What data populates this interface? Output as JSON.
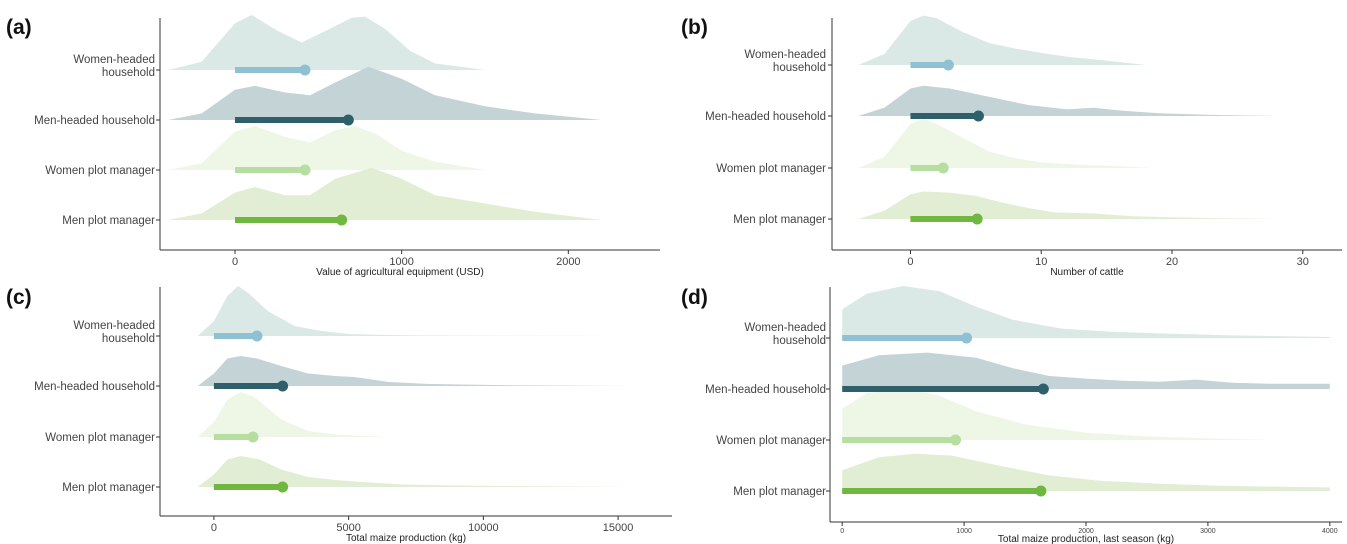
{
  "figure": {
    "categories": [
      "Women-headed household",
      "Men-headed household",
      "Women plot manager",
      "Men plot manager"
    ],
    "category_label_lines": [
      [
        "Women-headed",
        "household"
      ],
      [
        "Men-headed household"
      ],
      [
        "Women plot manager"
      ],
      [
        "Men plot manager"
      ]
    ],
    "colors": {
      "Women-headed household": "#8fc1d3",
      "Men-headed household": "#2e5f6b",
      "Women plot manager": "#b5dea0",
      "Men plot manager": "#6fb73f"
    },
    "fills": {
      "Women-headed household": "#dbe9e6",
      "Men-headed household": "#c4d3d6",
      "Women plot manager": "#eef6e6",
      "Men plot manager": "#e1eed3"
    }
  },
  "chart_data": [
    {
      "type": "ridgeline",
      "panel": "(a)",
      "xlabel": "Value of agricultural equipment (USD)",
      "xlim": [
        -450,
        2550
      ],
      "xticks": [
        0,
        1000,
        2000
      ],
      "small_ticks": false,
      "series": [
        {
          "category": "Women-headed household",
          "mean": 420,
          "density_x": [
            -400,
            -200,
            0,
            100,
            250,
            400,
            550,
            700,
            780,
            900,
            1050,
            1200,
            1500
          ],
          "density_y": [
            0,
            0.15,
            0.85,
            1,
            0.72,
            0.5,
            0.72,
            0.95,
            0.97,
            0.75,
            0.35,
            0.12,
            0
          ]
        },
        {
          "category": "Men-headed household",
          "mean": 680,
          "density_x": [
            -400,
            -200,
            0,
            120,
            300,
            450,
            600,
            800,
            1000,
            1200,
            1500,
            1800,
            2200
          ],
          "density_y": [
            0,
            0.12,
            0.55,
            0.62,
            0.5,
            0.45,
            0.68,
            0.97,
            0.75,
            0.45,
            0.25,
            0.12,
            0
          ]
        },
        {
          "category": "Women plot manager",
          "mean": 420,
          "density_x": [
            -400,
            -200,
            0,
            120,
            300,
            450,
            600,
            720,
            850,
            1000,
            1200,
            1500
          ],
          "density_y": [
            0,
            0.12,
            0.7,
            0.8,
            0.6,
            0.5,
            0.72,
            0.8,
            0.65,
            0.35,
            0.15,
            0
          ]
        },
        {
          "category": "Men plot manager",
          "mean": 640,
          "density_x": [
            -400,
            -200,
            0,
            120,
            300,
            450,
            600,
            820,
            1000,
            1200,
            1500,
            1800,
            2200
          ],
          "density_y": [
            0,
            0.12,
            0.5,
            0.6,
            0.45,
            0.45,
            0.75,
            0.95,
            0.75,
            0.45,
            0.3,
            0.15,
            0
          ]
        }
      ]
    },
    {
      "type": "ridgeline",
      "panel": "(b)",
      "xlabel": "Number of cattle",
      "xlim": [
        -6,
        33
      ],
      "xticks": [
        0,
        10,
        20,
        30
      ],
      "small_ticks": false,
      "series": [
        {
          "category": "Women-headed household",
          "mean": 2.9,
          "density_x": [
            -4,
            -2,
            0,
            1,
            2,
            4,
            6,
            8,
            10,
            12,
            15,
            18
          ],
          "density_y": [
            0,
            0.2,
            0.8,
            0.9,
            0.85,
            0.6,
            0.4,
            0.3,
            0.22,
            0.15,
            0.08,
            0
          ]
        },
        {
          "category": "Men-headed household",
          "mean": 5.2,
          "density_x": [
            -4,
            -2,
            0,
            1,
            3,
            5,
            7,
            9,
            12,
            14,
            16,
            19,
            23,
            28
          ],
          "density_y": [
            0,
            0.15,
            0.5,
            0.55,
            0.5,
            0.4,
            0.3,
            0.2,
            0.12,
            0.15,
            0.1,
            0.05,
            0.02,
            0
          ]
        },
        {
          "category": "Women plot manager",
          "mean": 2.5,
          "density_x": [
            -4,
            -2,
            0,
            1,
            2,
            4,
            6,
            8,
            10,
            13,
            16,
            18.5
          ],
          "density_y": [
            0,
            0.2,
            0.8,
            0.9,
            0.8,
            0.55,
            0.3,
            0.18,
            0.1,
            0.06,
            0.03,
            0
          ]
        },
        {
          "category": "Men plot manager",
          "mean": 5.1,
          "density_x": [
            -4,
            -2,
            0,
            1,
            3,
            5,
            7,
            9,
            11,
            14,
            17,
            20,
            24,
            28
          ],
          "density_y": [
            0,
            0.15,
            0.45,
            0.5,
            0.48,
            0.42,
            0.3,
            0.2,
            0.12,
            0.1,
            0.05,
            0.03,
            0.01,
            0
          ]
        }
      ]
    },
    {
      "type": "ridgeline",
      "panel": "(c)",
      "xlabel": "Total maize production (kg)",
      "xlim": [
        -2000,
        17000
      ],
      "xticks": [
        0,
        5000,
        10000,
        15000
      ],
      "small_ticks": false,
      "series": [
        {
          "category": "Women-headed household",
          "mean": 1600,
          "density_x": [
            -600,
            0,
            500,
            900,
            1300,
            2000,
            3000,
            4000,
            5000,
            6500,
            8000,
            11000,
            15500
          ],
          "density_y": [
            0,
            0.3,
            0.8,
            1,
            0.85,
            0.5,
            0.2,
            0.1,
            0.04,
            0.02,
            0.01,
            0.005,
            0
          ]
        },
        {
          "category": "Men-headed household",
          "mean": 2550,
          "density_x": [
            -600,
            0,
            500,
            1000,
            1600,
            2500,
            3500,
            4500,
            5200,
            6500,
            8000,
            11000,
            15500
          ],
          "density_y": [
            0,
            0.25,
            0.55,
            0.6,
            0.55,
            0.4,
            0.25,
            0.2,
            0.18,
            0.08,
            0.04,
            0.015,
            0
          ]
        },
        {
          "category": "Women plot manager",
          "mean": 1450,
          "density_x": [
            -600,
            0,
            500,
            1000,
            1500,
            2500,
            3500,
            4500,
            5500,
            6500
          ],
          "density_y": [
            0,
            0.3,
            0.75,
            0.9,
            0.8,
            0.35,
            0.12,
            0.05,
            0.02,
            0
          ]
        },
        {
          "category": "Men plot manager",
          "mean": 2550,
          "density_x": [
            -600,
            0,
            500,
            1000,
            1700,
            2500,
            3500,
            4500,
            5500,
            7000,
            9000,
            12000,
            15500
          ],
          "density_y": [
            0,
            0.25,
            0.55,
            0.62,
            0.55,
            0.35,
            0.2,
            0.14,
            0.1,
            0.05,
            0.03,
            0.015,
            0
          ]
        }
      ]
    },
    {
      "type": "ridgeline",
      "panel": "(d)",
      "xlabel": "Total maize production, last season (kg)",
      "xlim": [
        -100,
        4100
      ],
      "xticks": [
        0,
        1000,
        2000,
        3000,
        4000
      ],
      "small_ticks": true,
      "series": [
        {
          "category": "Women-headed household",
          "mean": 1020,
          "density_x": [
            0,
            200,
            500,
            800,
            1100,
            1400,
            1800,
            2200,
            2700,
            3200,
            3700,
            4000
          ],
          "density_y": [
            0.55,
            0.85,
            1,
            0.9,
            0.6,
            0.35,
            0.18,
            0.12,
            0.08,
            0.05,
            0.03,
            0.02
          ]
        },
        {
          "category": "Men-headed household",
          "mean": 1650,
          "density_x": [
            0,
            300,
            700,
            1100,
            1400,
            1700,
            2000,
            2300,
            2600,
            2900,
            3200,
            3500,
            4000
          ],
          "density_y": [
            0.45,
            0.65,
            0.7,
            0.6,
            0.4,
            0.25,
            0.2,
            0.16,
            0.14,
            0.18,
            0.12,
            0.1,
            0.1
          ]
        },
        {
          "category": "Women plot manager",
          "mean": 930,
          "density_x": [
            0,
            200,
            500,
            800,
            1100,
            1500,
            2000,
            2500,
            3000,
            3500
          ],
          "density_y": [
            0.6,
            0.9,
            1,
            0.85,
            0.55,
            0.3,
            0.14,
            0.07,
            0.03,
            0
          ]
        },
        {
          "category": "Men plot manager",
          "mean": 1630,
          "density_x": [
            0,
            300,
            600,
            900,
            1300,
            1700,
            2100,
            2600,
            3100,
            3600,
            4000
          ],
          "density_y": [
            0.4,
            0.65,
            0.72,
            0.68,
            0.48,
            0.3,
            0.2,
            0.14,
            0.1,
            0.08,
            0.07
          ]
        }
      ]
    }
  ]
}
